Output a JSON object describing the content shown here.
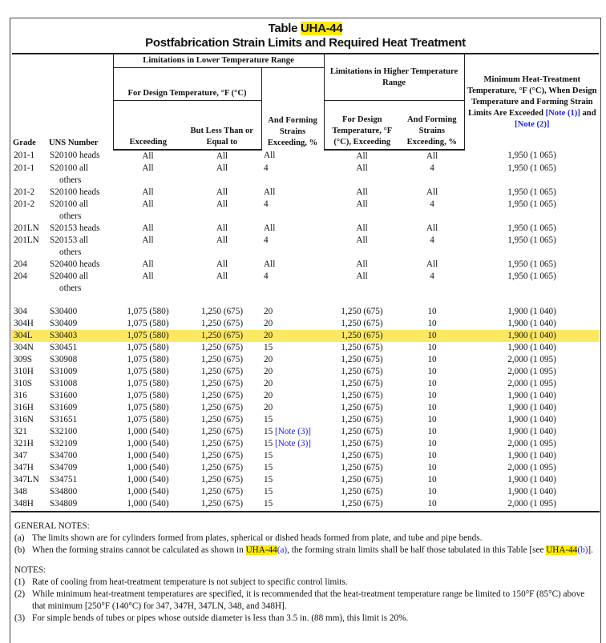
{
  "title": {
    "prefix": "Table ",
    "id": "UHA-44",
    "subtitle": "Postfabrication Strain Limits and Required Heat Treatment"
  },
  "headers": {
    "grade": "Grade",
    "uns": "UNS Number",
    "lower_group": "Limitations in Lower Temperature Range",
    "lower_design": "For Design Temperature, °F (°C)",
    "exceeding": "Exceeding",
    "less_than": "But Less Than or Equal to",
    "forming": "And Forming Strains Exceeding, %",
    "higher_group": "Limitations in Higher Temperature Range",
    "higher_design": "For Design Temperature, °F (°C), Exceeding",
    "higher_forming": "And Forming Strains Exceeding, %",
    "min_ht": "Minimum Heat-Treatment Temperature, °F (°C), When Design Temperature and Forming Strain Limits Are Exceeded",
    "note1": "[Note (1)]",
    "and": " and ",
    "note2": "[Note (2)]"
  },
  "rows": [
    {
      "grade": "201-1",
      "uns": "S20100 heads",
      "exc": "All",
      "less": "All",
      "form": "All",
      "hdes": "All",
      "hform": "All",
      "min": "1,950 (1 065)"
    },
    {
      "grade": "201-1",
      "uns": "S20100 all",
      "uns2": "others",
      "exc": "All",
      "less": "All",
      "form": "4",
      "hdes": "All",
      "hform": "4",
      "min": "1,950 (1 065)"
    },
    {
      "grade": "201-2",
      "uns": "S20100 heads",
      "exc": "All",
      "less": "All",
      "form": "All",
      "hdes": "All",
      "hform": "All",
      "min": "1,950 (1 065)"
    },
    {
      "grade": "201-2",
      "uns": "S20100 all",
      "uns2": "others",
      "exc": "All",
      "less": "All",
      "form": "4",
      "hdes": "All",
      "hform": "4",
      "min": "1,950 (1 065)"
    },
    {
      "grade": "201LN",
      "uns": "S20153 heads",
      "exc": "All",
      "less": "All",
      "form": "All",
      "hdes": "All",
      "hform": "All",
      "min": "1,950 (1 065)"
    },
    {
      "grade": "201LN",
      "uns": "S20153 all",
      "uns2": "others",
      "exc": "All",
      "less": "All",
      "form": "4",
      "hdes": "All",
      "hform": "4",
      "min": "1,950 (1 065)"
    },
    {
      "grade": "204",
      "uns": "S20400 heads",
      "exc": "All",
      "less": "All",
      "form": "All",
      "hdes": "All",
      "hform": "All",
      "min": "1,950 (1 065)"
    },
    {
      "grade": "204",
      "uns": "S20400 all",
      "uns2": "others",
      "exc": "All",
      "less": "All",
      "form": "4",
      "hdes": "All",
      "hform": "4",
      "min": "1,950 (1 065)"
    },
    {
      "grade": "304",
      "uns": "S30400",
      "exc": "1,075 (580)",
      "less": "1,250 (675)",
      "form": "20",
      "hdes": "1,250 (675)",
      "hform": "10",
      "min": "1,900 (1 040)"
    },
    {
      "grade": "304H",
      "uns": "S30409",
      "exc": "1,075 (580)",
      "less": "1,250 (675)",
      "form": "20",
      "hdes": "1,250 (675)",
      "hform": "10",
      "min": "1,900 (1 040)"
    },
    {
      "grade": "304L",
      "uns": "S30403",
      "exc": "1,075 (580)",
      "less": "1,250 (675)",
      "form": "20",
      "hdes": "1,250 (675)",
      "hform": "10",
      "min": "1,900 (1 040)",
      "highlight": true
    },
    {
      "grade": "304N",
      "uns": "S30451",
      "exc": "1,075 (580)",
      "less": "1,250 (675)",
      "form": "15",
      "hdes": "1,250 (675)",
      "hform": "10",
      "min": "1,900 (1 040)"
    },
    {
      "grade": "309S",
      "uns": "S30908",
      "exc": "1,075 (580)",
      "less": "1,250 (675)",
      "form": "20",
      "hdes": "1,250 (675)",
      "hform": "10",
      "min": "2,000 (1 095)"
    },
    {
      "grade": "310H",
      "uns": "S31009",
      "exc": "1,075 (580)",
      "less": "1,250 (675)",
      "form": "20",
      "hdes": "1,250 (675)",
      "hform": "10",
      "min": "2,000 (1 095)"
    },
    {
      "grade": "310S",
      "uns": "S31008",
      "exc": "1,075 (580)",
      "less": "1,250 (675)",
      "form": "20",
      "hdes": "1,250 (675)",
      "hform": "10",
      "min": "2,000 (1 095)"
    },
    {
      "grade": "316",
      "uns": "S31600",
      "exc": "1,075 (580)",
      "less": "1,250 (675)",
      "form": "20",
      "hdes": "1,250 (675)",
      "hform": "10",
      "min": "1,900 (1 040)"
    },
    {
      "grade": "316H",
      "uns": "S31609",
      "exc": "1,075 (580)",
      "less": "1,250 (675)",
      "form": "20",
      "hdes": "1,250 (675)",
      "hform": "10",
      "min": "1,900 (1 040)"
    },
    {
      "grade": "316N",
      "uns": "S31651",
      "exc": "1,075 (580)",
      "less": "1,250 (675)",
      "form": "15",
      "hdes": "1,250 (675)",
      "hform": "10",
      "min": "1,900 (1 040)"
    },
    {
      "grade": "321",
      "uns": "S32100",
      "exc": "1,000 (540)",
      "less": "1,250 (675)",
      "form": "15",
      "note": "[Note (3)]",
      "hdes": "1,250 (675)",
      "hform": "10",
      "min": "1,900 (1 040)"
    },
    {
      "grade": "321H",
      "uns": "S32109",
      "exc": "1,000 (540)",
      "less": "1,250 (675)",
      "form": "15",
      "note": "[Note (3)]",
      "hdes": "1,250 (675)",
      "hform": "10",
      "min": "2,000 (1 095)"
    },
    {
      "grade": "347",
      "uns": "S34700",
      "exc": "1,000 (540)",
      "less": "1,250 (675)",
      "form": "15",
      "hdes": "1,250 (675)",
      "hform": "10",
      "min": "1,900 (1 040)"
    },
    {
      "grade": "347H",
      "uns": "S34709",
      "exc": "1,000 (540)",
      "less": "1,250 (675)",
      "form": "15",
      "hdes": "1,250 (675)",
      "hform": "10",
      "min": "2,000 (1 095)"
    },
    {
      "grade": "347LN",
      "uns": "S34751",
      "exc": "1,000 (540)",
      "less": "1,250 (675)",
      "form": "15",
      "hdes": "1,250 (675)",
      "hform": "10",
      "min": "1,900 (1 040)"
    },
    {
      "grade": "348",
      "uns": "S34800",
      "exc": "1,000 (540)",
      "less": "1,250 (675)",
      "form": "15",
      "hdes": "1,250 (675)",
      "hform": "10",
      "min": "1,900 (1 040)"
    },
    {
      "grade": "348H",
      "uns": "S34809",
      "exc": "1,000 (540)",
      "less": "1,250 (675)",
      "form": "15",
      "hdes": "1,250 (675)",
      "hform": "10",
      "min": "2,000 (1 095)"
    }
  ],
  "general_notes": {
    "heading": "GENERAL NOTES:",
    "a": {
      "key": "(a)",
      "text": "The limits shown are for cylinders formed from plates, spherical or dished heads formed from plate, and tube and pipe bends."
    },
    "b": {
      "key": "(b)",
      "t1": "When the forming strains cannot be calculated as shown in ",
      "ref1": "UHA-44",
      "ref1b": "(a)",
      "t2": ", the forming strain limits shall be half those tabulated in this Table [see ",
      "ref2": "UHA-44",
      "ref2b": "(b)",
      "t3": "]."
    }
  },
  "notes": {
    "heading": "NOTES:",
    "items": [
      {
        "key": "(1)",
        "text": "Rate of cooling from heat-treatment temperature is not subject to specific control limits."
      },
      {
        "key": "(2)",
        "text": "While minimum heat-treatment temperatures are specified, it is recommended that the heat-treatment temperature range be limited to 150°F (85°C) above that minimum [250°F (140°C) for 347, 347H, 347LN, 348, and 348H]."
      },
      {
        "key": "(3)",
        "text": "For simple bends of tubes or pipes whose outside diameter is less than 3.5 in. (88 mm), this limit is 20%."
      }
    ]
  }
}
